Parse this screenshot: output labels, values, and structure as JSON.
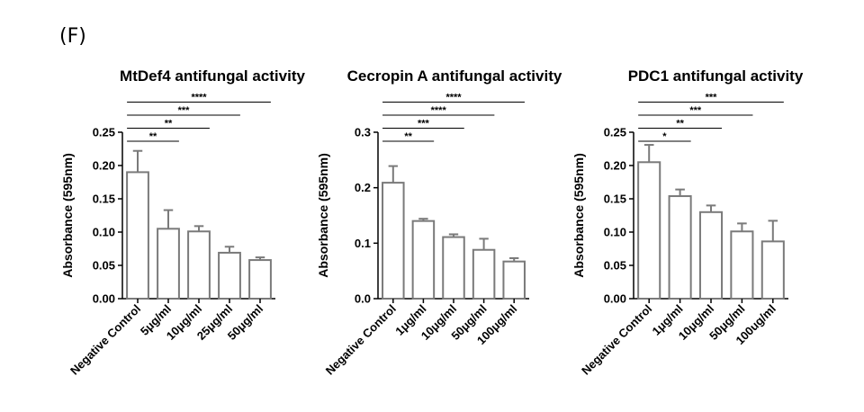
{
  "panel_label": "(F)",
  "chart_data": [
    {
      "type": "bar",
      "title": "MtDef4 antifungal activity",
      "ylabel": "Absorbance (595nm)",
      "xlabel": "",
      "ylim": [
        0,
        0.25
      ],
      "yticks": [
        "0.00",
        "0.05",
        "0.10",
        "0.15",
        "0.20",
        "0.25"
      ],
      "categories": [
        "Negative Control",
        "5μg/ml",
        "10μg/ml",
        "25μg/ml",
        "50μg/ml"
      ],
      "values": [
        0.19,
        0.105,
        0.101,
        0.069,
        0.058
      ],
      "errors": [
        0.032,
        0.028,
        0.008,
        0.009,
        0.004
      ],
      "significance": [
        {
          "to": 1,
          "label": "**"
        },
        {
          "to": 2,
          "label": "**"
        },
        {
          "to": 3,
          "label": "***"
        },
        {
          "to": 4,
          "label": "****"
        }
      ]
    },
    {
      "type": "bar",
      "title": "Cecropin A antifungal activity",
      "ylabel": "Absorbance (595nm)",
      "xlabel": "",
      "ylim": [
        0,
        0.3
      ],
      "yticks": [
        "0.0",
        "0.1",
        "0.2",
        "0.3"
      ],
      "categories": [
        "Negative Control",
        "1μg/ml",
        "10μg/ml",
        "50μg/ml",
        "100μg/ml"
      ],
      "values": [
        0.209,
        0.14,
        0.111,
        0.088,
        0.067
      ],
      "errors": [
        0.03,
        0.004,
        0.005,
        0.02,
        0.006
      ],
      "significance": [
        {
          "to": 1,
          "label": "**"
        },
        {
          "to": 2,
          "label": "***"
        },
        {
          "to": 3,
          "label": "****"
        },
        {
          "to": 4,
          "label": "****"
        }
      ]
    },
    {
      "type": "bar",
      "title": "PDC1 antifungal activity",
      "ylabel": "Absorbance (595nm)",
      "xlabel": "",
      "ylim": [
        0,
        0.25
      ],
      "yticks": [
        "0.00",
        "0.05",
        "0.10",
        "0.15",
        "0.20",
        "0.25"
      ],
      "categories": [
        "Negative Control",
        "1μg/ml",
        "10μg/ml",
        "50μg/ml",
        "100ug/ml"
      ],
      "values": [
        0.205,
        0.154,
        0.13,
        0.101,
        0.086
      ],
      "errors": [
        0.026,
        0.01,
        0.01,
        0.012,
        0.031
      ],
      "significance": [
        {
          "to": 1,
          "label": "*"
        },
        {
          "to": 2,
          "label": "**"
        },
        {
          "to": 3,
          "label": "***"
        },
        {
          "to": 4,
          "label": "***"
        }
      ]
    }
  ]
}
